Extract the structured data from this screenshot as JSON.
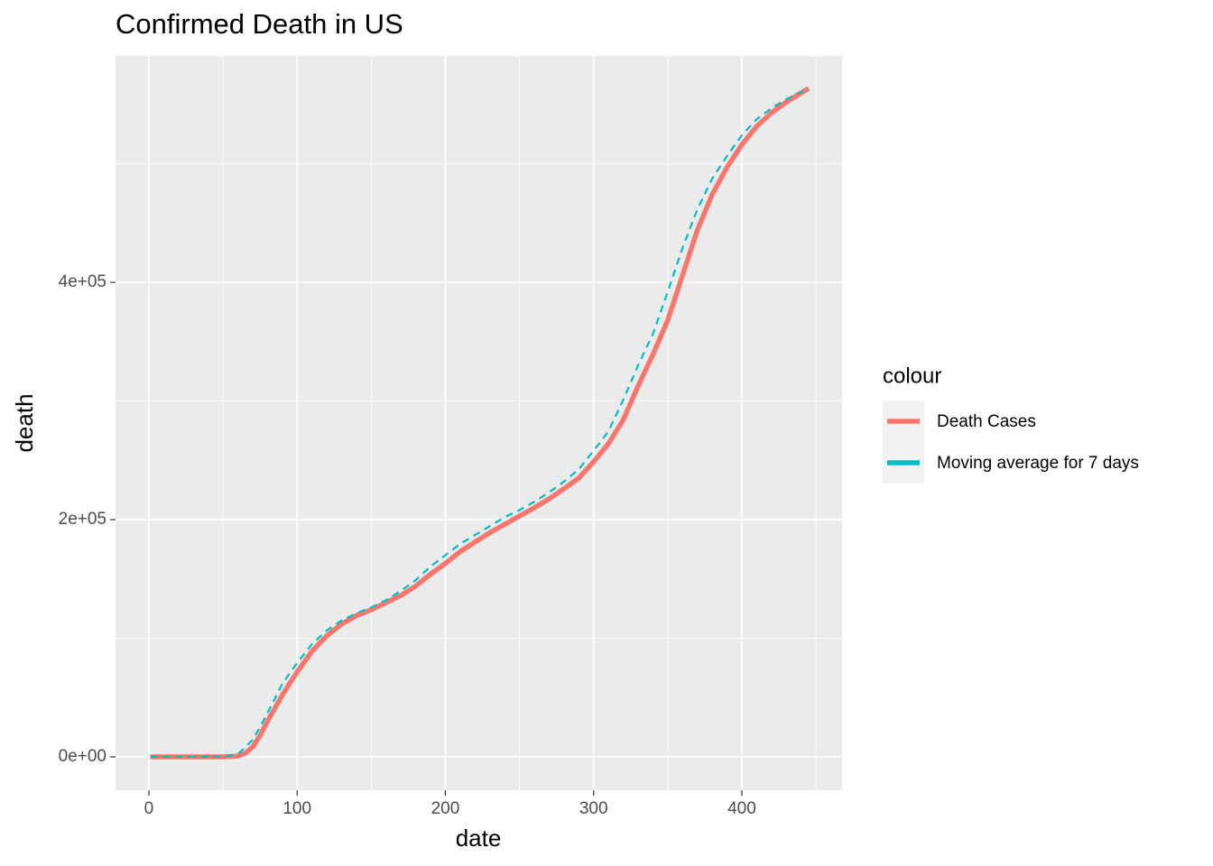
{
  "chart_data": {
    "type": "line",
    "title": "Confirmed Death in US",
    "x_label": "date",
    "y_label": "death",
    "legend_title": "colour",
    "legend_position": "right",
    "grid": true,
    "x": [
      1,
      10,
      20,
      30,
      40,
      50,
      60,
      65,
      70,
      75,
      80,
      85,
      90,
      95,
      100,
      110,
      120,
      130,
      140,
      150,
      160,
      170,
      180,
      190,
      200,
      210,
      220,
      230,
      240,
      250,
      260,
      270,
      280,
      290,
      300,
      310,
      320,
      330,
      340,
      350,
      360,
      370,
      380,
      390,
      400,
      410,
      420,
      430,
      440,
      445
    ],
    "series": [
      {
        "name": "Death Cases",
        "color": "#F8766D",
        "linetype": "solid",
        "values": [
          0,
          0,
          0,
          0,
          0,
          0,
          700,
          3000,
          8400,
          18000,
          30000,
          41000,
          52000,
          62000,
          71500,
          89000,
          102000,
          112000,
          119000,
          124000,
          130000,
          136000,
          144000,
          154000,
          163000,
          173000,
          181000,
          189000,
          196000,
          203000,
          210000,
          217500,
          226000,
          235000,
          248700,
          264000,
          284000,
          312500,
          339000,
          368000,
          406000,
          444000,
          474000,
          497000,
          516000,
          531500,
          543000,
          552000,
          559700,
          563500
        ]
      },
      {
        "name": "Moving average for 7 days",
        "color": "#00BFC4",
        "linetype": "dashed",
        "values": [
          0,
          0,
          0,
          0,
          0,
          0,
          2300,
          8000,
          14400,
          25000,
          37000,
          49000,
          61500,
          70500,
          79000,
          95000,
          106500,
          115000,
          121000,
          126000,
          132000,
          140000,
          149000,
          160500,
          170000,
          179500,
          187000,
          194500,
          202000,
          208000,
          215000,
          223000,
          232000,
          242500,
          258000,
          274500,
          301000,
          330000,
          356500,
          392000,
          429000,
          461500,
          487500,
          506500,
          524000,
          537500,
          546800,
          554400,
          560500,
          563500
        ]
      }
    ],
    "xlim": [
      -22.5,
      467.6
    ],
    "xticks": [
      0,
      100,
      200,
      300,
      400
    ],
    "ylim": [
      -28137,
      590875
    ],
    "yticks": [
      {
        "value": 0,
        "label": "0e+00"
      },
      {
        "value": 200000,
        "label": "2e+05"
      },
      {
        "value": 400000,
        "label": "4e+05"
      }
    ]
  }
}
